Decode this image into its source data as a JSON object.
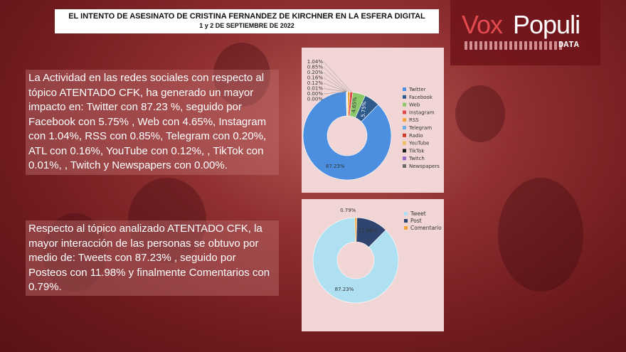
{
  "header": {
    "title_line1": "EL INTENTO DE ASESINATO DE CRISTINA FERNANDEZ DE KIRCHNER EN LA ESFERA DIGITAL",
    "title_line2": "1 y 2 DE SEPTIEMBRE DE 2022"
  },
  "brand": {
    "part1": "Vox",
    "part2": "Populi",
    "sub": "DATA",
    "accent": "#e24a50"
  },
  "paragraphs": {
    "p1": "La Actividad en las redes sociales con respecto al tópico  ATENTADO CFK, ha generado un mayor impacto en: Twitter con 87.23 %, seguido por Facebook con 5.75% , Web con  4.65%, Instagram con 1.04%, RSS con 0.85%, Telegram con  0.20%, ATL con 0.16%, YouTube con 0.12%, , TikTok con 0.01%, , Twitch y  Newspapers con 0.00%.",
    "p2": "Respecto al tópico analizado ATENTADO CFK, la mayor  interacción de las personas se obtuvo por medio de: Tweets con  87.23% , seguido por Posteos con 11.98% y finalmente  Comentarios con 0.79%."
  },
  "chart_data": [
    {
      "type": "pie",
      "donut": true,
      "categories": [
        "Twitter",
        "Facebook",
        "Web",
        "Instagram",
        "RSS",
        "Telegram",
        "Radio",
        "YouTube",
        "TikTok",
        "Twitch",
        "Newspapers"
      ],
      "values": [
        87.23,
        5.75,
        4.65,
        1.04,
        0.85,
        0.2,
        0.16,
        0.12,
        0.01,
        0.0,
        0.0
      ],
      "labels": [
        "87.23%",
        "5.75%",
        "4.65%",
        "1.04%",
        "0.85%",
        "0.20%",
        "0.16%",
        "0.12%",
        "0.01%",
        "0.00%",
        "0.00%"
      ],
      "colors": [
        "#4c8fe0",
        "#2f5a8c",
        "#8cc76a",
        "#e04a4a",
        "#f2a33a",
        "#6fb0e8",
        "#d23a2a",
        "#f0c060",
        "#222222",
        "#9a66cc",
        "#6b6b6b"
      ],
      "legend_position": "right"
    },
    {
      "type": "pie",
      "donut": true,
      "categories": [
        "Tweet",
        "Post",
        "Comentario"
      ],
      "values": [
        87.23,
        11.98,
        0.79
      ],
      "labels": [
        "87.23%",
        "11.98%",
        "0.79%"
      ],
      "colors": [
        "#aee0f2",
        "#2f4570",
        "#f2a33a"
      ],
      "legend_position": "top-right"
    }
  ]
}
